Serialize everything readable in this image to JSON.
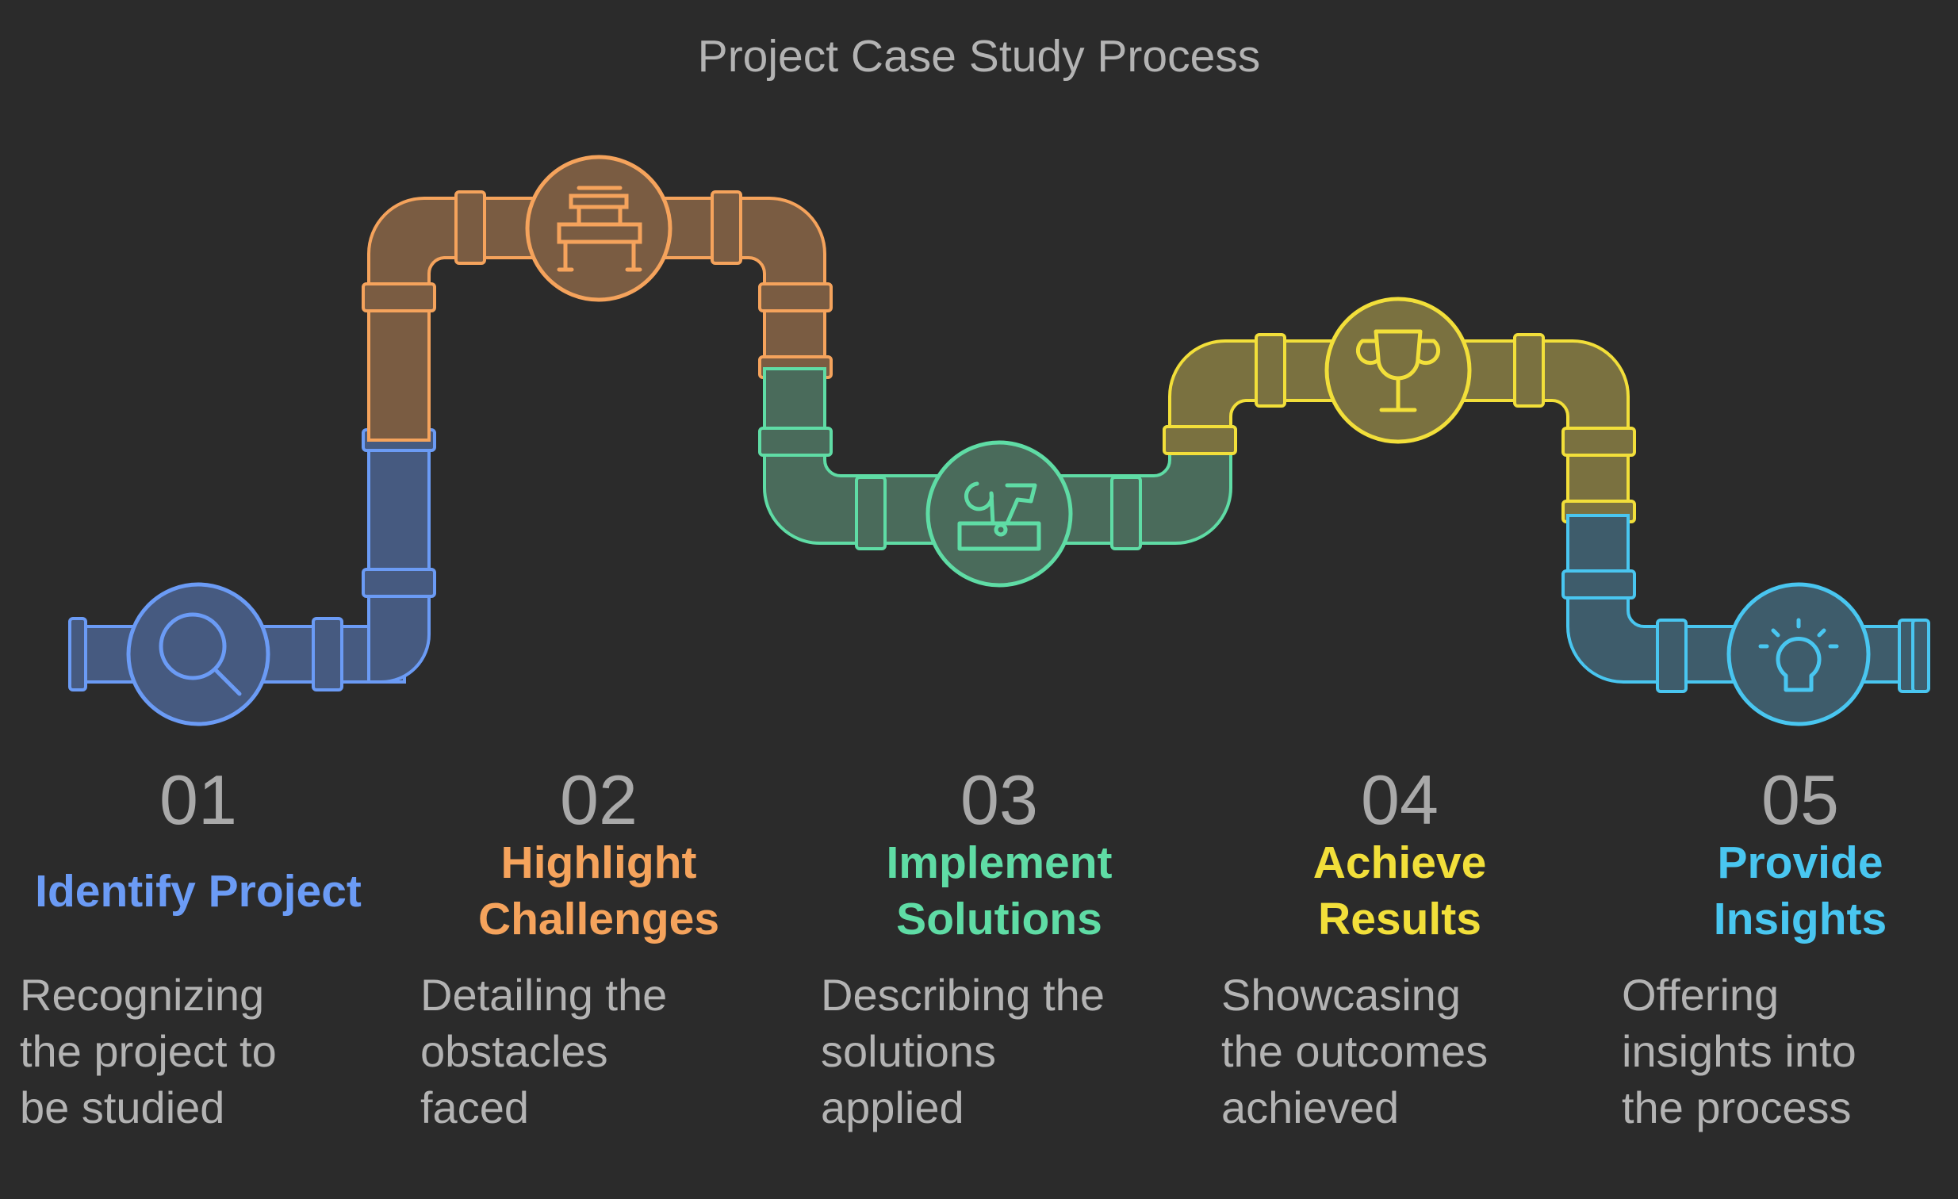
{
  "title": "Project Case Study Process",
  "colors": {
    "background": "#2b2b2b",
    "blue": "#6b9bf5",
    "orange": "#f5a35c",
    "green": "#5fdca5",
    "yellow": "#f2df3a",
    "cyan": "#49c6f0"
  },
  "steps": [
    {
      "number": "01",
      "title": "Identify Project",
      "description": "Recognizing\nthe project to\nbe studied",
      "icon": "magnifying-glass-icon",
      "color": "#6b9bf5"
    },
    {
      "number": "02",
      "title": "Highlight\nChallenges",
      "description": "Detailing the\nobstacles\nfaced",
      "icon": "hurdle-icon",
      "color": "#f5a35c"
    },
    {
      "number": "03",
      "title": "Implement\nSolutions",
      "description": "Describing the\nsolutions\napplied",
      "icon": "toolbox-icon",
      "color": "#5fdca5"
    },
    {
      "number": "04",
      "title": "Achieve\nResults",
      "description": "Showcasing\nthe outcomes\nachieved",
      "icon": "trophy-icon",
      "color": "#f2df3a"
    },
    {
      "number": "05",
      "title": "Provide\nInsights",
      "description": "Offering\ninsights into\nthe process",
      "icon": "lightbulb-icon",
      "color": "#49c6f0"
    }
  ]
}
